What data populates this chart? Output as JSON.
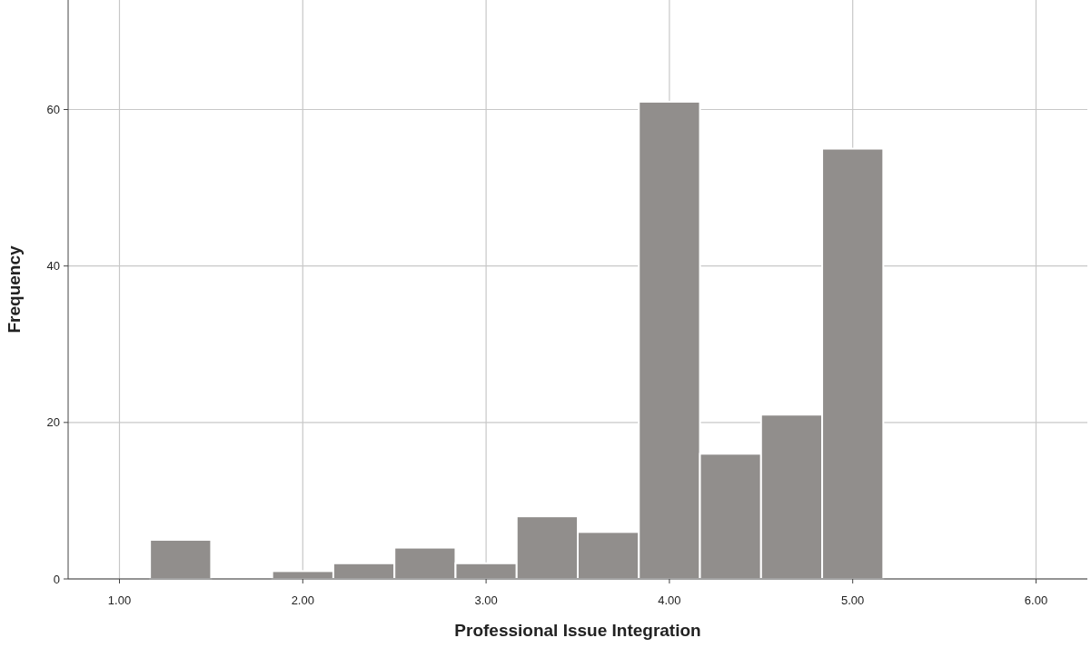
{
  "chart_data": {
    "type": "histogram",
    "xlabel": "Professional Issue Integration",
    "ylabel": "Frequency",
    "bins": [
      1.1667,
      1.5,
      1.8333,
      2.1667,
      2.5,
      2.8333,
      3.1667,
      3.5,
      3.8333,
      4.1667,
      4.5,
      4.8333,
      5.1667
    ],
    "values": [
      5,
      0,
      1,
      2,
      4,
      2,
      8,
      6,
      61,
      16,
      21,
      55
    ],
    "color": "#918e8c",
    "xlim": [
      0.72,
      6.28
    ],
    "ylim": [
      0,
      74
    ],
    "xticks": [
      {
        "value": 1,
        "label": "1.00"
      },
      {
        "value": 2,
        "label": "2.00"
      },
      {
        "value": 3,
        "label": "3.00"
      },
      {
        "value": 4,
        "label": "4.00"
      },
      {
        "value": 5,
        "label": "5.00"
      },
      {
        "value": 6,
        "label": "6.00"
      }
    ],
    "yticks": [
      0,
      20,
      40,
      60
    ],
    "grid": true
  }
}
